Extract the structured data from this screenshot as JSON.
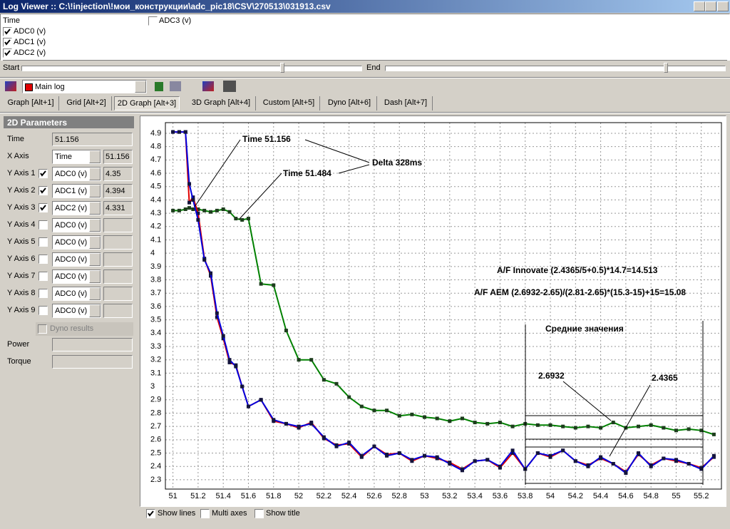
{
  "window": {
    "title": "Log Viewer :: C:\\!injection\\!мои_конструкции\\adc_pic18\\CSV\\270513\\031913.csv",
    "time_label": "Time",
    "adc3": "ADC3 (v)",
    "start": "Start",
    "end": "End",
    "log_combo": "Main log",
    "tabs": [
      "Graph [Alt+1]",
      "Grid [Alt+2]",
      "2D Graph [Alt+3]",
      "3D Graph [Alt+4]",
      "Custom [Alt+5]",
      "Dyno [Alt+6]",
      "Dash [Alt+7]"
    ],
    "options": [
      {
        "label": "Show lines",
        "checked": true
      },
      {
        "label": "Multi axes",
        "checked": false
      },
      {
        "label": "Show title",
        "checked": false
      }
    ]
  },
  "panel": {
    "header": "2D Parameters",
    "time_label": "Time",
    "time_value": 51.156,
    "x_axis_label": "X Axis",
    "x_axis_combo": "Time",
    "x_axis_value": 51.156,
    "y_axes": [
      {
        "label": "Y Axis 1",
        "checked": true,
        "channel": "ADC0 (v)",
        "value": 4.35
      },
      {
        "label": "Y Axis 2",
        "checked": true,
        "channel": "ADC1 (v)",
        "value": 4.394
      },
      {
        "label": "Y Axis 3",
        "checked": true,
        "channel": "ADC2 (v)",
        "value": 4.331
      },
      {
        "label": "Y Axis 4",
        "checked": false,
        "channel": "ADC0 (v)"
      },
      {
        "label": "Y Axis 5",
        "checked": false,
        "channel": "ADC0 (v)"
      },
      {
        "label": "Y Axis 6",
        "checked": false,
        "channel": "ADC0 (v)"
      },
      {
        "label": "Y Axis 7",
        "checked": false,
        "channel": "ADC0 (v)"
      },
      {
        "label": "Y Axis 8",
        "checked": false,
        "channel": "ADC0 (v)"
      },
      {
        "label": "Y Axis 9",
        "checked": false,
        "channel": "ADC0 (v)"
      }
    ],
    "dyno": "Dyno results",
    "power": "Power",
    "torque": "Torque"
  },
  "chart_data": {
    "type": "line",
    "x": [
      51.0,
      51.05,
      51.1,
      51.13,
      51.16,
      51.2,
      51.25,
      51.3,
      51.35,
      51.4,
      51.45,
      51.5,
      51.55,
      51.6,
      51.7,
      51.8,
      51.9,
      52.0,
      52.1,
      52.2,
      52.3,
      52.4,
      52.5,
      52.6,
      52.7,
      52.8,
      52.9,
      53.0,
      53.1,
      53.2,
      53.3,
      53.4,
      53.5,
      53.6,
      53.7,
      53.8,
      53.9,
      54.0,
      54.1,
      54.2,
      54.3,
      54.4,
      54.5,
      54.6,
      54.7,
      54.8,
      54.9,
      55.0,
      55.1,
      55.2,
      55.3
    ],
    "series": [
      {
        "name": "ADC0 (v)",
        "color": "#e00000",
        "marker_color": "#14143c",
        "values": [
          4.91,
          4.91,
          4.91,
          4.38,
          4.42,
          4.3,
          3.96,
          3.83,
          3.52,
          3.36,
          3.18,
          3.16,
          3.0,
          2.85,
          2.9,
          2.74,
          2.72,
          2.69,
          2.73,
          2.61,
          2.56,
          2.57,
          2.47,
          2.55,
          2.49,
          2.5,
          2.44,
          2.48,
          2.46,
          2.43,
          2.38,
          2.44,
          2.45,
          2.39,
          2.5,
          2.38,
          2.5,
          2.47,
          2.52,
          2.44,
          2.41,
          2.46,
          2.42,
          2.36,
          2.49,
          2.41,
          2.46,
          2.44,
          2.42,
          2.39,
          2.47
        ]
      },
      {
        "name": "ADC1 (v)",
        "color": "#0000e0",
        "marker_color": "#14143c",
        "values": [
          4.91,
          4.91,
          4.91,
          4.52,
          4.4,
          4.25,
          3.95,
          3.85,
          3.55,
          3.38,
          3.2,
          3.15,
          3.0,
          2.85,
          2.9,
          2.75,
          2.72,
          2.7,
          2.72,
          2.62,
          2.55,
          2.58,
          2.48,
          2.55,
          2.48,
          2.5,
          2.45,
          2.48,
          2.47,
          2.42,
          2.37,
          2.44,
          2.45,
          2.4,
          2.52,
          2.38,
          2.5,
          2.48,
          2.52,
          2.44,
          2.4,
          2.47,
          2.42,
          2.35,
          2.5,
          2.4,
          2.46,
          2.45,
          2.42,
          2.38,
          2.48
        ]
      },
      {
        "name": "ADC2 (v)",
        "color": "#008000",
        "marker_color": "#1d3d1d",
        "values": [
          4.32,
          4.32,
          4.33,
          4.34,
          4.33,
          4.33,
          4.32,
          4.31,
          4.32,
          4.33,
          4.31,
          4.26,
          4.25,
          4.26,
          3.77,
          3.76,
          3.42,
          3.2,
          3.2,
          3.05,
          3.02,
          2.92,
          2.85,
          2.82,
          2.82,
          2.78,
          2.79,
          2.77,
          2.76,
          2.74,
          2.76,
          2.73,
          2.72,
          2.73,
          2.7,
          2.72,
          2.71,
          2.71,
          2.7,
          2.69,
          2.7,
          2.69,
          2.73,
          2.69,
          2.7,
          2.71,
          2.69,
          2.67,
          2.68,
          2.67,
          2.64
        ]
      }
    ],
    "xlim": [
      50.94,
      55.36
    ],
    "ylim": [
      2.23,
      4.98
    ],
    "xticks": [
      51,
      51.2,
      51.4,
      51.6,
      51.8,
      52,
      52.2,
      52.4,
      52.6,
      52.8,
      53,
      53.2,
      53.4,
      53.6,
      53.8,
      54,
      54.2,
      54.4,
      54.6,
      54.8,
      55,
      55.2
    ],
    "yticks": [
      2.3,
      2.4,
      2.5,
      2.6,
      2.7,
      2.8,
      2.9,
      3,
      3.1,
      3.2,
      3.3,
      3.4,
      3.5,
      3.6,
      3.7,
      3.8,
      3.9,
      4,
      4.1,
      4.2,
      4.3,
      4.4,
      4.5,
      4.6,
      4.7,
      4.8,
      4.9
    ],
    "grid": true,
    "annotations": [
      "Time 51.156",
      "Time 51.484",
      "Delta 328ms",
      "A/F Innovate (2.4365/5+0.5)*14.7=14.513",
      "A/F AEM (2.6932-2.65)/(2.81-2.65)*(15.3-15)+15=15.08",
      "Средние значения",
      "2.6932",
      "2.4365"
    ]
  }
}
